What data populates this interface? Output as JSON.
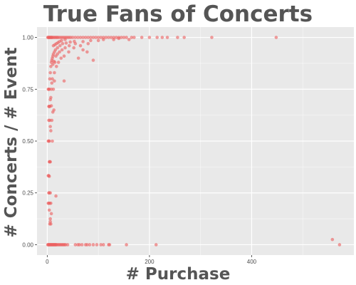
{
  "chart_data": {
    "type": "scatter",
    "title": "True Fans of Concerts",
    "xlabel": "# Purchase",
    "ylabel": "# Concerts / # Event",
    "xlim": [
      -20,
      600
    ],
    "ylim": [
      -0.05,
      1.05
    ],
    "x_ticks": [
      {
        "value": 0,
        "label": "0"
      },
      {
        "value": 200,
        "label": "200"
      },
      {
        "value": 400,
        "label": "400"
      }
    ],
    "y_ticks": [
      {
        "value": 0.0,
        "label": "0.00"
      },
      {
        "value": 0.25,
        "label": "0.25"
      },
      {
        "value": 0.5,
        "label": "0.50"
      },
      {
        "value": 0.75,
        "label": "0.75"
      },
      {
        "value": 1.0,
        "label": "1.00"
      }
    ],
    "grid": true,
    "legend": "none",
    "colors": {
      "point": "#ec6161",
      "panel": "#e9e9e9",
      "grid": "#ffffff",
      "title": "#555555",
      "tick": "#4d4d4d"
    },
    "points": [
      [
        1,
        1
      ],
      [
        2,
        1
      ],
      [
        3,
        1
      ],
      [
        4,
        1
      ],
      [
        5,
        1
      ],
      [
        6,
        1
      ],
      [
        7,
        1
      ],
      [
        8,
        1
      ],
      [
        9,
        1
      ],
      [
        10,
        1
      ],
      [
        12,
        1
      ],
      [
        14,
        1
      ],
      [
        16,
        1
      ],
      [
        18,
        1
      ],
      [
        20,
        1
      ],
      [
        22,
        1
      ],
      [
        25,
        1
      ],
      [
        28,
        1
      ],
      [
        31,
        1
      ],
      [
        34,
        1
      ],
      [
        37,
        1
      ],
      [
        40,
        1
      ],
      [
        43,
        1
      ],
      [
        46,
        1
      ],
      [
        50,
        1
      ],
      [
        55,
        1
      ],
      [
        60,
        1
      ],
      [
        65,
        1
      ],
      [
        70,
        1
      ],
      [
        75,
        1
      ],
      [
        80,
        1
      ],
      [
        85,
        1
      ],
      [
        90,
        1
      ],
      [
        95,
        1
      ],
      [
        100,
        1
      ],
      [
        105,
        1
      ],
      [
        110,
        1
      ],
      [
        115,
        1
      ],
      [
        120,
        1
      ],
      [
        125,
        1
      ],
      [
        130,
        1
      ],
      [
        135,
        1
      ],
      [
        140,
        1
      ],
      [
        145,
        1
      ],
      [
        150,
        1
      ],
      [
        155,
        1
      ],
      [
        165,
        1
      ],
      [
        170,
        1
      ],
      [
        185,
        1
      ],
      [
        200,
        1
      ],
      [
        215,
        1
      ],
      [
        225,
        1
      ],
      [
        235,
        1
      ],
      [
        255,
        1
      ],
      [
        268,
        1
      ],
      [
        322,
        1
      ],
      [
        448,
        1
      ],
      [
        1,
        0
      ],
      [
        2,
        0
      ],
      [
        3,
        0
      ],
      [
        4,
        0
      ],
      [
        5,
        0
      ],
      [
        6,
        0
      ],
      [
        7,
        0
      ],
      [
        8,
        0
      ],
      [
        9,
        0
      ],
      [
        10,
        0
      ],
      [
        11,
        0
      ],
      [
        12,
        0
      ],
      [
        13,
        0
      ],
      [
        14,
        0
      ],
      [
        15,
        0
      ],
      [
        16,
        0
      ],
      [
        17,
        0
      ],
      [
        18,
        0
      ],
      [
        20,
        0
      ],
      [
        22,
        0
      ],
      [
        24,
        0
      ],
      [
        26,
        0
      ],
      [
        28,
        0
      ],
      [
        30,
        0
      ],
      [
        32,
        0
      ],
      [
        34,
        0
      ],
      [
        36,
        0
      ],
      [
        40,
        0
      ],
      [
        55,
        0
      ],
      [
        60,
        0
      ],
      [
        63,
        0
      ],
      [
        68,
        0
      ],
      [
        75,
        0
      ],
      [
        78,
        0
      ],
      [
        83,
        0
      ],
      [
        90,
        0
      ],
      [
        97,
        0
      ],
      [
        105,
        0
      ],
      [
        110,
        0
      ],
      [
        120,
        0
      ],
      [
        122,
        0
      ],
      [
        155,
        0
      ],
      [
        213,
        0
      ],
      [
        558,
        0.025
      ],
      [
        572,
        0
      ],
      [
        2,
        0.5
      ],
      [
        3,
        0.5
      ],
      [
        4,
        0.5
      ],
      [
        3,
        0.667
      ],
      [
        4,
        0.667
      ],
      [
        2,
        0.333
      ],
      [
        3,
        0.333
      ],
      [
        3,
        0.25
      ],
      [
        4,
        0.25
      ],
      [
        6,
        0.25
      ],
      [
        3,
        0.2
      ],
      [
        4,
        0.167
      ],
      [
        5,
        0.2
      ],
      [
        6,
        0.125
      ],
      [
        7,
        0.1
      ],
      [
        8,
        0.15
      ],
      [
        6,
        0.4
      ],
      [
        9,
        0.6
      ],
      [
        7,
        0.55
      ],
      [
        7,
        0.71
      ],
      [
        5,
        0.8
      ],
      [
        6,
        0.83
      ],
      [
        8,
        0.75
      ],
      [
        9,
        0.89
      ],
      [
        11,
        0.87
      ],
      [
        12,
        0.92
      ],
      [
        14,
        0.93
      ],
      [
        16,
        0.94
      ],
      [
        20,
        0.95
      ],
      [
        25,
        0.96
      ],
      [
        30,
        0.97
      ],
      [
        37,
        0.973
      ],
      [
        45,
        0.978
      ],
      [
        53,
        0.981
      ],
      [
        10,
        0.8
      ],
      [
        12,
        0.75
      ],
      [
        14,
        0.79
      ],
      [
        13,
        0.65
      ],
      [
        17,
        0.235
      ],
      [
        33,
        0.79
      ],
      [
        61,
        0.9
      ],
      [
        70,
        0.94
      ],
      [
        78,
        0.93
      ],
      [
        90,
        0.89
      ],
      [
        5,
        0.6
      ],
      [
        6,
        0.7
      ],
      [
        4,
        0.75
      ],
      [
        4,
        0.4
      ],
      [
        3,
        0.6
      ],
      [
        8,
        0.67
      ],
      [
        6,
        0.57
      ],
      [
        11,
        0.64
      ],
      [
        10,
        0.5
      ],
      [
        14,
        0.83
      ],
      [
        18,
        0.86
      ],
      [
        22,
        0.88
      ],
      [
        27,
        0.9
      ],
      [
        33,
        0.91
      ],
      [
        42,
        0.93
      ],
      [
        52,
        0.95
      ],
      [
        65,
        0.96
      ],
      [
        80,
        0.97
      ],
      [
        100,
        0.985
      ],
      [
        130,
        0.99
      ],
      [
        160,
        0.99
      ],
      [
        9,
        0.78
      ],
      [
        7,
        0.86
      ],
      [
        8,
        0.88
      ],
      [
        10,
        0.9
      ],
      [
        12,
        0.96
      ],
      [
        15,
        0.965
      ],
      [
        18,
        0.97
      ],
      [
        21,
        0.975
      ],
      [
        24,
        0.98
      ],
      [
        28,
        0.985
      ],
      [
        35,
        0.99
      ],
      [
        15,
        0.88
      ],
      [
        11,
        0.91
      ],
      [
        13,
        0.885
      ],
      [
        17,
        0.91
      ],
      [
        20,
        0.92
      ],
      [
        24,
        0.93
      ],
      [
        29,
        0.94
      ],
      [
        35,
        0.95
      ],
      [
        43,
        0.96
      ],
      [
        55,
        0.97
      ],
      [
        70,
        0.98
      ],
      [
        85,
        0.985
      ],
      [
        110,
        0.99
      ],
      [
        140,
        0.995
      ],
      [
        4,
        0.33
      ],
      [
        5,
        0.4
      ],
      [
        5,
        0.1
      ],
      [
        6,
        0.111
      ],
      [
        2,
        0.2
      ],
      [
        7,
        0.2
      ],
      [
        3,
        0.75
      ],
      [
        2,
        0.75
      ],
      [
        5,
        0.667
      ]
    ]
  }
}
